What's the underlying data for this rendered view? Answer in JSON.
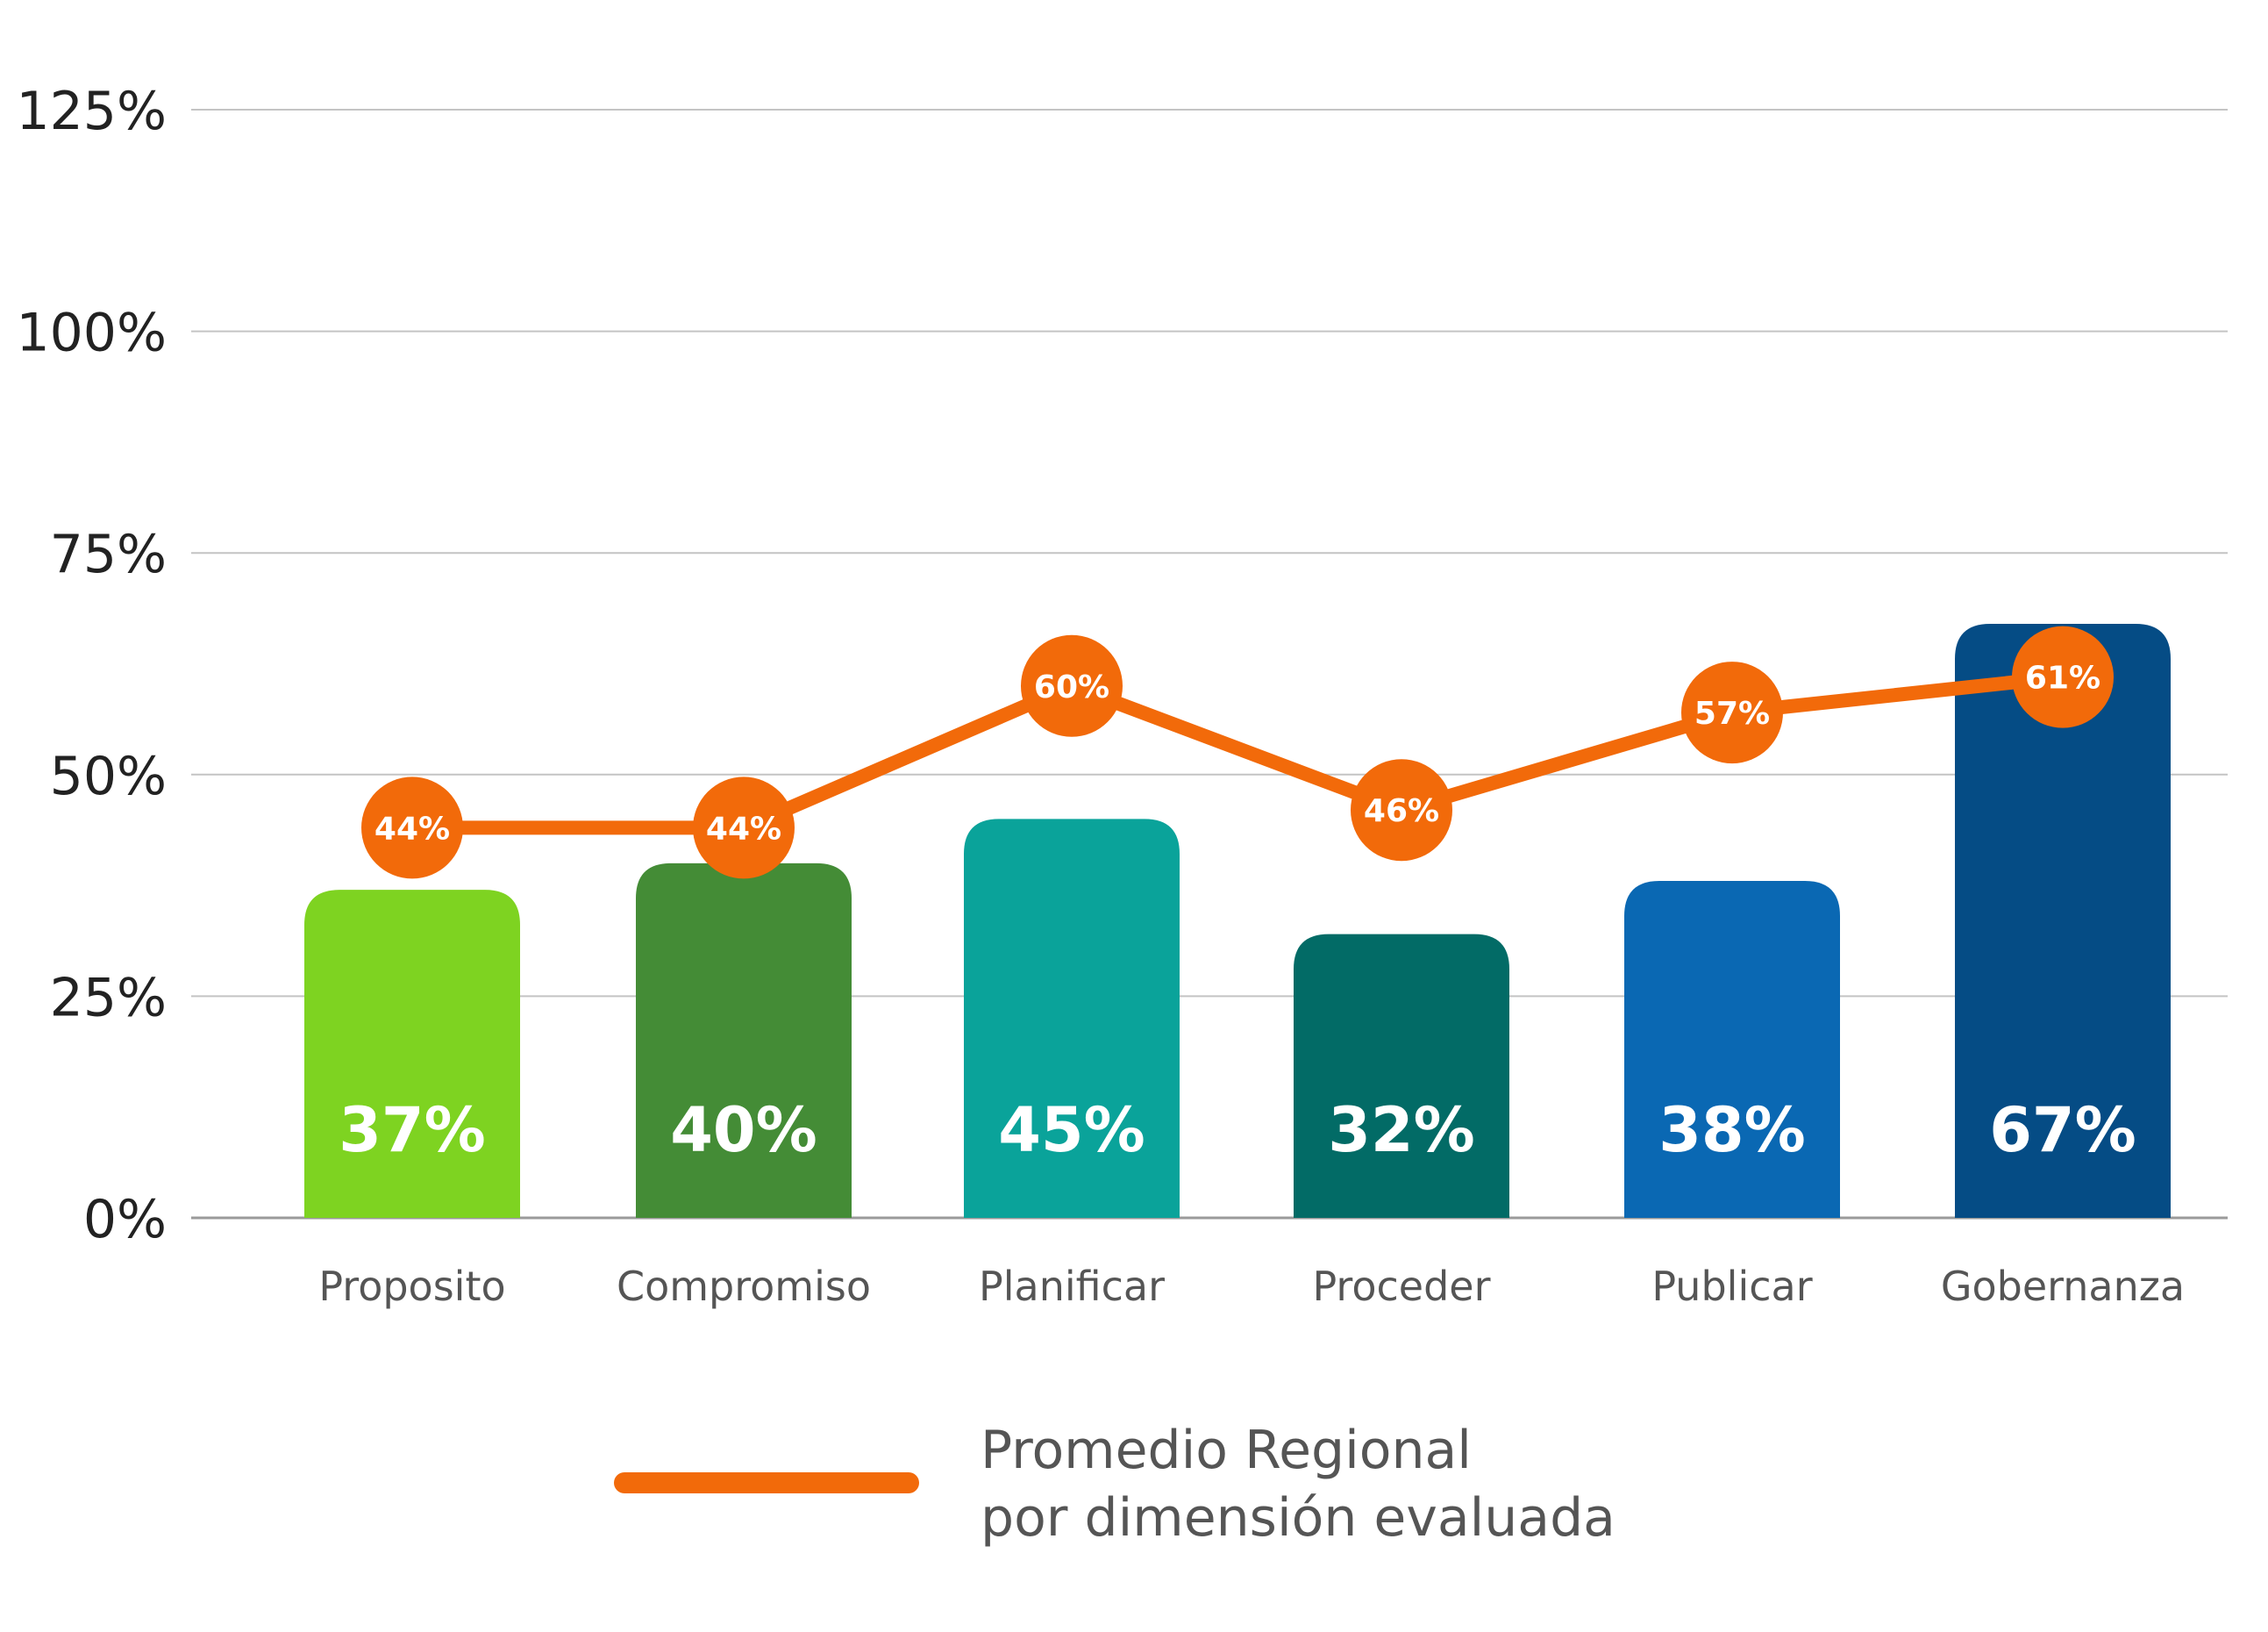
{
  "chart_data": {
    "type": "bar",
    "categories": [
      "Proposito",
      "Compromiso",
      "Planificar",
      "Proceder",
      "Publicar",
      "Gobernanza"
    ],
    "series": [
      {
        "type": "bar",
        "values": [
          37,
          40,
          45,
          32,
          38,
          67
        ],
        "value_labels": [
          "37%",
          "40%",
          "45%",
          "32%",
          "38%",
          "67%"
        ],
        "colors": [
          "#7ED321",
          "#448C36",
          "#0AA39A",
          "#026B66",
          "#0A68B3",
          "#054C85"
        ]
      },
      {
        "name_lines": [
          "Promedio Regional",
          "por dimensión evaluada"
        ],
        "type": "line",
        "values": [
          44,
          44,
          60,
          46,
          57,
          61
        ],
        "value_labels": [
          "44%",
          "44%",
          "60%",
          "46%",
          "57%",
          "61%"
        ],
        "color": "#F26A0A"
      }
    ],
    "y_ticks": [
      "0%",
      "25%",
      "50%",
      "75%",
      "100%",
      "125%"
    ],
    "ylim": [
      0,
      125
    ],
    "grid": true,
    "legend_position": "bottom-center"
  }
}
